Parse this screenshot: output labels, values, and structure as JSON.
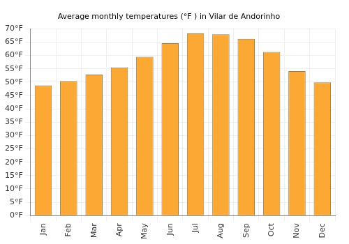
{
  "chart_data": {
    "type": "bar",
    "title": "Average monthly temperatures (°F ) in Vilar de Andorinho",
    "categories": [
      "Jan",
      "Feb",
      "Mar",
      "Apr",
      "May",
      "Jun",
      "Jul",
      "Aug",
      "Sep",
      "Oct",
      "Nov",
      "Dec"
    ],
    "values": [
      48.8,
      50.4,
      52.8,
      55.5,
      59.5,
      64.6,
      68.2,
      67.9,
      66.2,
      61.3,
      54.1,
      49.9
    ],
    "color": "#fba834",
    "ylim": [
      0,
      70
    ],
    "yticks": [
      {
        "value": 0,
        "label": "0°F"
      },
      {
        "value": 5,
        "label": "5°F"
      },
      {
        "value": 10,
        "label": "10°F"
      },
      {
        "value": 15,
        "label": "15°F"
      },
      {
        "value": 20,
        "label": "20°F"
      },
      {
        "value": 25,
        "label": "25°F"
      },
      {
        "value": 30,
        "label": "30°F"
      },
      {
        "value": 35,
        "label": "35°F"
      },
      {
        "value": 40,
        "label": "40°F"
      },
      {
        "value": 45,
        "label": "45°F"
      },
      {
        "value": 50,
        "label": "50°F"
      },
      {
        "value": 55,
        "label": "55°F"
      },
      {
        "value": 60,
        "label": "60°F"
      },
      {
        "value": 65,
        "label": "65°F"
      },
      {
        "value": 70,
        "label": "70°F"
      }
    ],
    "grid": true
  }
}
